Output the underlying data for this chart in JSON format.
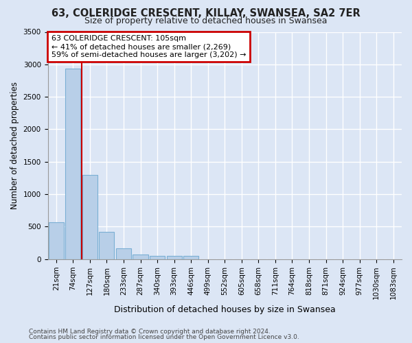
{
  "title1": "63, COLERIDGE CRESCENT, KILLAY, SWANSEA, SA2 7ER",
  "title2": "Size of property relative to detached houses in Swansea",
  "xlabel": "Distribution of detached houses by size in Swansea",
  "ylabel": "Number of detached properties",
  "categories": [
    "21sqm",
    "74sqm",
    "127sqm",
    "180sqm",
    "233sqm",
    "287sqm",
    "340sqm",
    "393sqm",
    "446sqm",
    "499sqm",
    "552sqm",
    "605sqm",
    "658sqm",
    "711sqm",
    "764sqm",
    "818sqm",
    "871sqm",
    "924sqm",
    "977sqm",
    "1030sqm",
    "1083sqm"
  ],
  "bar_values": [
    570,
    2930,
    1300,
    420,
    165,
    75,
    50,
    50,
    50,
    0,
    0,
    0,
    0,
    0,
    0,
    0,
    0,
    0,
    0,
    0,
    0
  ],
  "bar_color": "#b8cfe8",
  "bar_edge_color": "#7aafd4",
  "bg_color": "#dce6f5",
  "plot_bg_color": "#dce6f5",
  "grid_color": "#ffffff",
  "red_line_x": 1.5,
  "annotation_text1": "63 COLERIDGE CRESCENT: 105sqm",
  "annotation_text2": "← 41% of detached houses are smaller (2,269)",
  "annotation_text3": "59% of semi-detached houses are larger (3,202) →",
  "annotation_box_facecolor": "#ffffff",
  "annotation_border_color": "#cc0000",
  "ylim_max": 3500,
  "yticks": [
    0,
    500,
    1000,
    1500,
    2000,
    2500,
    3000,
    3500
  ],
  "footer1": "Contains HM Land Registry data © Crown copyright and database right 2024.",
  "footer2": "Contains public sector information licensed under the Open Government Licence v3.0.",
  "title1_fontsize": 10.5,
  "title2_fontsize": 9,
  "ylabel_fontsize": 8.5,
  "xlabel_fontsize": 9,
  "tick_fontsize": 7.5,
  "footer_fontsize": 6.5,
  "annot_fontsize": 8
}
